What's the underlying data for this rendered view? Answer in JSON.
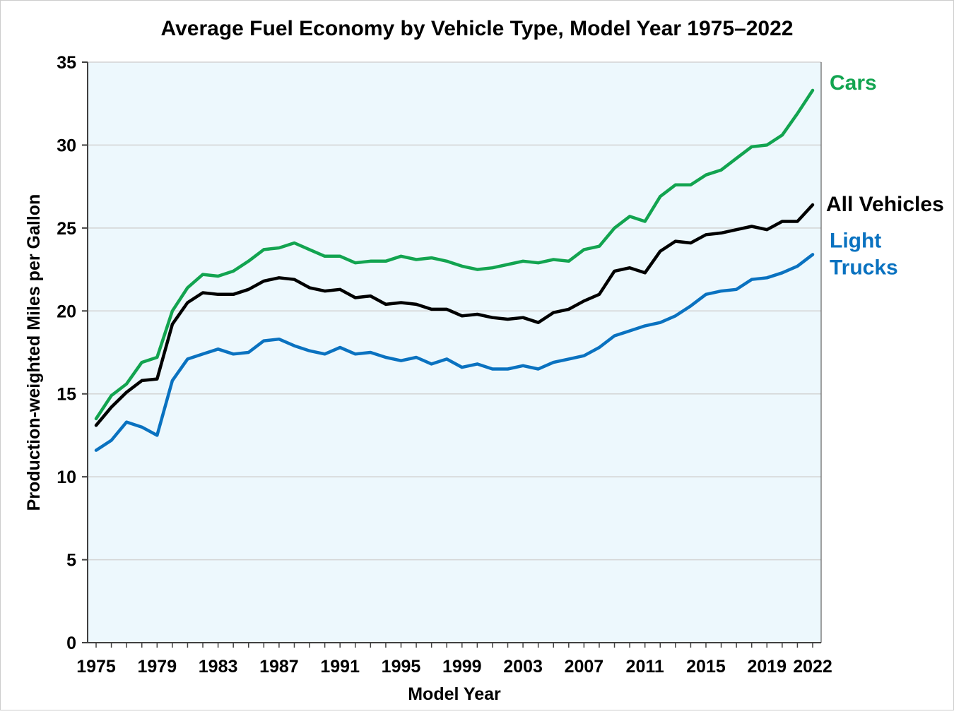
{
  "chart_data": {
    "type": "line",
    "title": "Average Fuel Economy by Vehicle Type, Model Year 1975–2022",
    "xlabel": "Model Year",
    "ylabel": "Production-weighted Miles per Gallon",
    "xlim": [
      1975,
      2022
    ],
    "ylim": [
      0,
      35
    ],
    "x_ticks": [
      "1975",
      "1979",
      "1983",
      "1987",
      "1991",
      "1995",
      "1999",
      "2003",
      "2007",
      "2011",
      "2015",
      "2019",
      "2022"
    ],
    "y_ticks": [
      "0",
      "5",
      "10",
      "15",
      "20",
      "25",
      "30",
      "35"
    ],
    "grid": "horizontal",
    "x": [
      1975,
      1976,
      1977,
      1978,
      1979,
      1980,
      1981,
      1982,
      1983,
      1984,
      1985,
      1986,
      1987,
      1988,
      1989,
      1990,
      1991,
      1992,
      1993,
      1994,
      1995,
      1996,
      1997,
      1998,
      1999,
      2000,
      2001,
      2002,
      2003,
      2004,
      2005,
      2006,
      2007,
      2008,
      2009,
      2010,
      2011,
      2012,
      2013,
      2014,
      2015,
      2016,
      2017,
      2018,
      2019,
      2020,
      2021,
      2022
    ],
    "series": [
      {
        "name": "Cars",
        "color": "#12a450",
        "label_lines": [
          "Cars"
        ],
        "values": [
          13.5,
          14.9,
          15.6,
          16.9,
          17.2,
          20.0,
          21.4,
          22.2,
          22.1,
          22.4,
          23.0,
          23.7,
          23.8,
          24.1,
          23.7,
          23.3,
          23.3,
          22.9,
          23.0,
          23.0,
          23.3,
          23.1,
          23.2,
          23.0,
          22.7,
          22.5,
          22.6,
          22.8,
          23.0,
          22.9,
          23.1,
          23.0,
          23.7,
          23.9,
          25.0,
          25.7,
          25.4,
          26.9,
          27.6,
          27.6,
          28.2,
          28.5,
          29.2,
          29.9,
          30.0,
          30.6,
          31.9,
          33.3
        ]
      },
      {
        "name": "All Vehicles",
        "color": "#000000",
        "label_lines": [
          "All Vehicles"
        ],
        "values": [
          13.1,
          14.2,
          15.1,
          15.8,
          15.9,
          19.2,
          20.5,
          21.1,
          21.0,
          21.0,
          21.3,
          21.8,
          22.0,
          21.9,
          21.4,
          21.2,
          21.3,
          20.8,
          20.9,
          20.4,
          20.5,
          20.4,
          20.1,
          20.1,
          19.7,
          19.8,
          19.6,
          19.5,
          19.6,
          19.3,
          19.9,
          20.1,
          20.6,
          21.0,
          22.4,
          22.6,
          22.3,
          23.6,
          24.2,
          24.1,
          24.6,
          24.7,
          24.9,
          25.1,
          24.9,
          25.4,
          25.4,
          26.4
        ]
      },
      {
        "name": "Light Trucks",
        "color": "#0a72c0",
        "label_lines": [
          "Light",
          "Trucks"
        ],
        "values": [
          11.6,
          12.2,
          13.3,
          13.0,
          12.5,
          15.8,
          17.1,
          17.4,
          17.7,
          17.4,
          17.5,
          18.2,
          18.3,
          17.9,
          17.6,
          17.4,
          17.8,
          17.4,
          17.5,
          17.2,
          17.0,
          17.2,
          16.8,
          17.1,
          16.6,
          16.8,
          16.5,
          16.5,
          16.7,
          16.5,
          16.9,
          17.1,
          17.3,
          17.8,
          18.5,
          18.8,
          19.1,
          19.3,
          19.7,
          20.3,
          21.0,
          21.2,
          21.3,
          21.9,
          22.0,
          22.3,
          22.7,
          23.4
        ]
      }
    ]
  }
}
